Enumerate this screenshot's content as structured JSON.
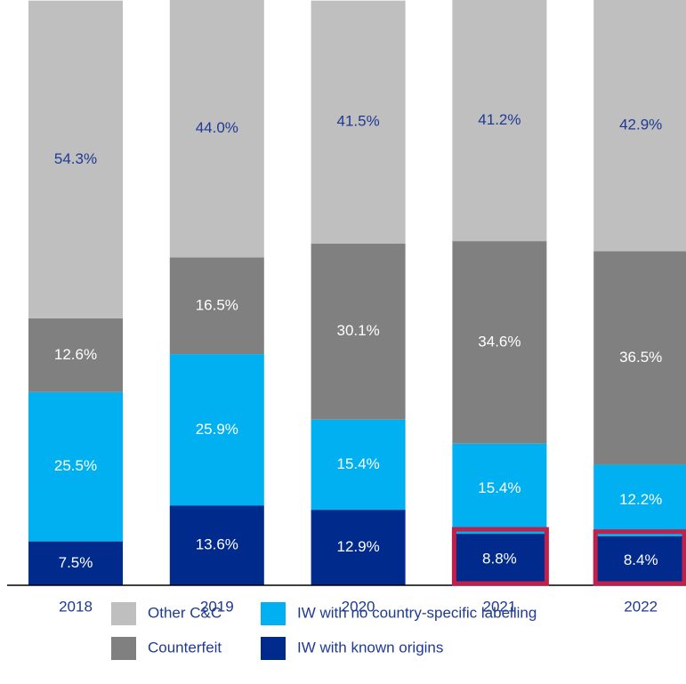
{
  "chart_data": {
    "type": "stacked_bar",
    "categories": [
      "2018",
      "2019",
      "2020",
      "2021",
      "2022"
    ],
    "ylim": [
      0,
      100
    ],
    "highlight_color": "#c0204a",
    "series": [
      {
        "name": "IW with known origins",
        "color": "#002a8c",
        "label_color": "#ffffff",
        "values": [
          7.5,
          13.6,
          12.9,
          8.8,
          8.4
        ],
        "value_labels": [
          "7.5%",
          "13.6%",
          "12.9%",
          "8.8%",
          "8.4%"
        ],
        "highlight": [
          false,
          false,
          false,
          true,
          true
        ]
      },
      {
        "name": "IW with no country-specific labelling",
        "color": "#00b0f0",
        "label_color": "#ffffff",
        "values": [
          25.5,
          25.9,
          15.4,
          15.4,
          12.2
        ],
        "value_labels": [
          "25.5%",
          "25.9%",
          "15.4%",
          "15.4%",
          "12.2%"
        ]
      },
      {
        "name": "Counterfeit",
        "color": "#808080",
        "label_color": "#ffffff",
        "values": [
          12.6,
          16.5,
          30.1,
          34.6,
          36.5
        ],
        "value_labels": [
          "12.6%",
          "16.5%",
          "30.1%",
          "34.6%",
          "36.5%"
        ]
      },
      {
        "name": "Other C&C",
        "color": "#bfbfbf",
        "label_color": "#1f3a93",
        "values": [
          54.3,
          44.0,
          41.5,
          41.2,
          42.9
        ],
        "value_labels": [
          "54.3%",
          "44.0%",
          "41.5%",
          "41.2%",
          "42.9%"
        ]
      }
    ]
  }
}
